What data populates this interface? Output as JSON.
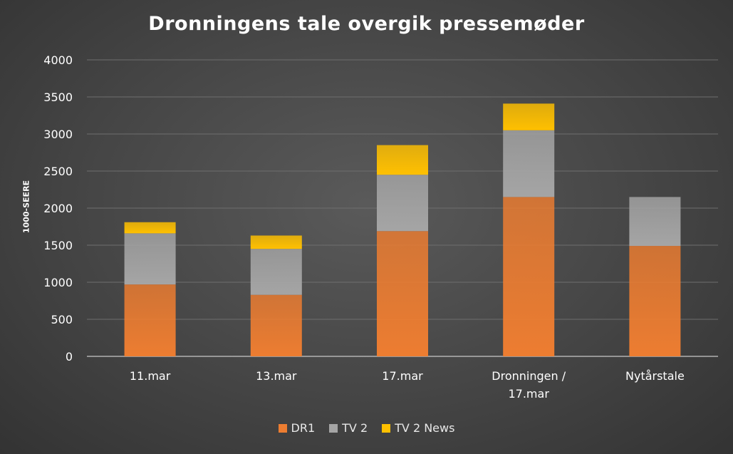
{
  "chart_data": {
    "type": "bar",
    "stacked": true,
    "title": "Dronningens tale overgik pressemøder",
    "ylabel": "1000-SEERE",
    "xlabel": "",
    "ylim": [
      0,
      4000
    ],
    "yticks": [
      0,
      500,
      1000,
      1500,
      2000,
      2500,
      3000,
      3500,
      4000
    ],
    "grid": true,
    "legend_position": "bottom",
    "categories": [
      [
        "11.mar"
      ],
      [
        "13.mar"
      ],
      [
        "17.mar"
      ],
      [
        "Dronningen /",
        "17.mar"
      ],
      [
        "Nytårstale"
      ]
    ],
    "series": [
      {
        "name": "DR1",
        "color": "#ed7d31",
        "values": [
          970,
          830,
          1690,
          2150,
          1490
        ]
      },
      {
        "name": "TV 2",
        "color": "#a5a5a5",
        "values": [
          690,
          620,
          760,
          900,
          660
        ]
      },
      {
        "name": "TV 2 News",
        "color": "#ffc000",
        "values": [
          150,
          180,
          400,
          360,
          0
        ]
      }
    ]
  }
}
